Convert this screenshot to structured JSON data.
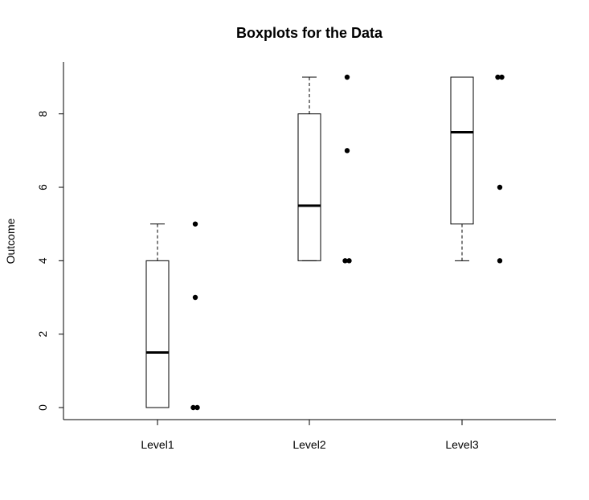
{
  "chart_data": {
    "type": "boxplot",
    "title": "Boxplots for the Data",
    "xlabel": "",
    "ylabel": "Outcome",
    "ylim": [
      -0.35,
      9.35
    ],
    "yticks": [
      0,
      2,
      4,
      6,
      8
    ],
    "categories": [
      "Level1",
      "Level2",
      "Level3"
    ],
    "boxes": [
      {
        "whisker_low": 0,
        "q1": 0,
        "median": 1.5,
        "q3": 4,
        "whisker_high": 5
      },
      {
        "whisker_low": 4,
        "q1": 4,
        "median": 5.5,
        "q3": 8,
        "whisker_high": 9
      },
      {
        "whisker_low": 4,
        "q1": 5,
        "median": 7.5,
        "q3": 9,
        "whisker_high": 9
      }
    ],
    "points": [
      {
        "category": "Level1",
        "values": [
          5,
          3,
          0,
          0
        ]
      },
      {
        "category": "Level2",
        "values": [
          9,
          7,
          4,
          4
        ]
      },
      {
        "category": "Level3",
        "values": [
          9,
          9,
          6,
          4
        ]
      }
    ],
    "grid": false,
    "legend": "none"
  }
}
